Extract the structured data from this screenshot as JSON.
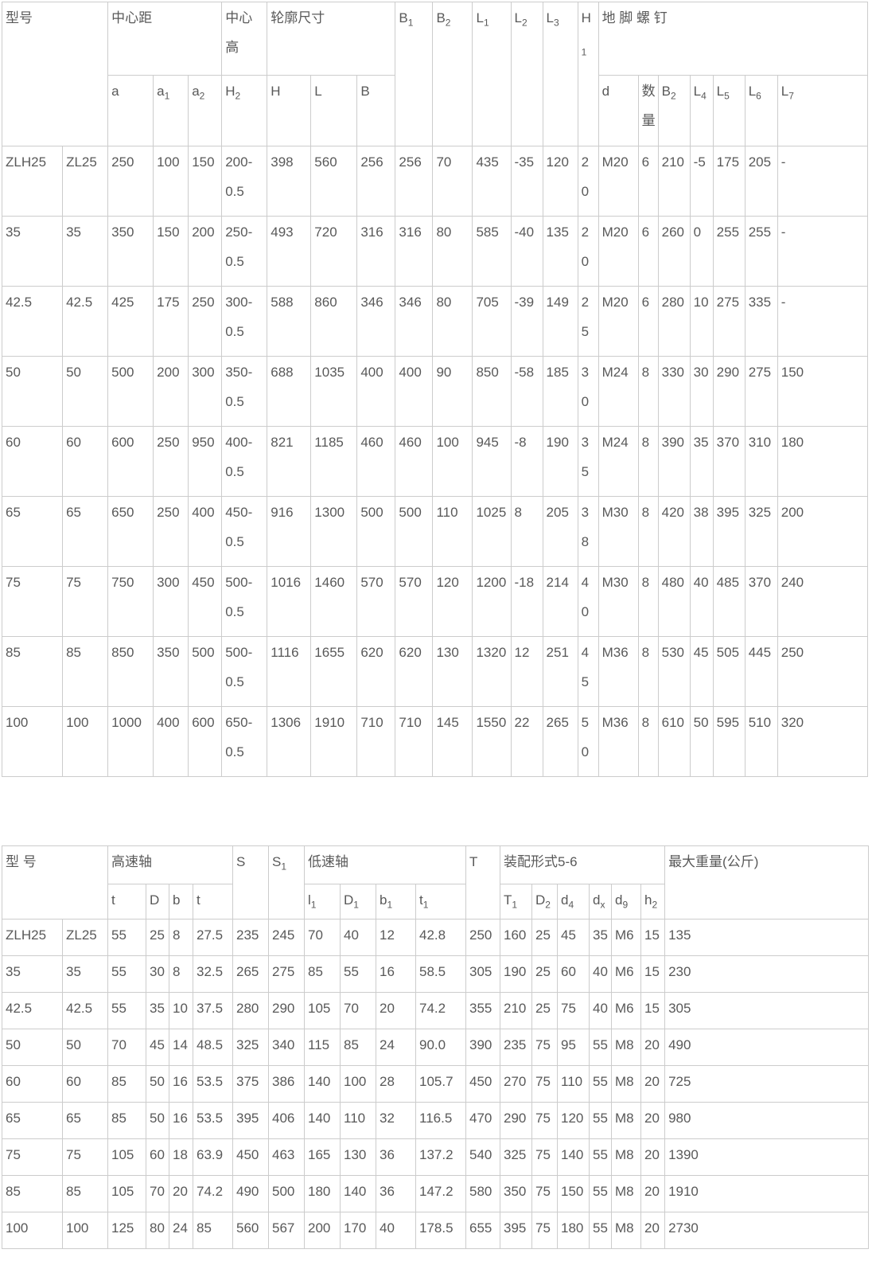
{
  "colors": {
    "text": "#595959",
    "border": "#cccccc",
    "background": "#ffffff"
  },
  "table1": {
    "group_headers": {
      "model": "型号",
      "center_distance": "中心距",
      "center_height": "中心高",
      "outline": "轮廓尺寸",
      "anchor_bolts": "地 脚  螺 钉"
    },
    "col_headers": {
      "B1": {
        "b": "B",
        "s": "1"
      },
      "B2": {
        "b": "B",
        "s": "2"
      },
      "L1": {
        "b": "L",
        "s": "1"
      },
      "L2": {
        "b": "L",
        "s": "2"
      },
      "L3": {
        "b": "L",
        "s": "3"
      },
      "H1": {
        "b": "H",
        "s": "1"
      },
      "a": {
        "b": "a",
        "s": ""
      },
      "a1": {
        "b": "a",
        "s": "1"
      },
      "a2": {
        "b": "a",
        "s": "2"
      },
      "H2": {
        "b": "H",
        "s": "2"
      },
      "H": {
        "b": "H",
        "s": ""
      },
      "L": {
        "b": "L",
        "s": ""
      },
      "B": {
        "b": "B",
        "s": ""
      },
      "d": {
        "b": "d",
        "s": ""
      },
      "qty": {
        "b": "数量",
        "s": ""
      },
      "B2b": {
        "b": "B",
        "s": "2"
      },
      "L4": {
        "b": "L",
        "s": "4"
      },
      "L5": {
        "b": "L",
        "s": "5"
      },
      "L6": {
        "b": "L",
        "s": "6"
      },
      "L7": {
        "b": "L",
        "s": "7"
      }
    },
    "rows": [
      [
        "ZLH25",
        "ZL25",
        "250",
        "100",
        "150",
        "200-0.5",
        "398",
        "560",
        "256",
        "256",
        "70",
        "435",
        "-35",
        "120",
        "20",
        "M20",
        "6",
        "210",
        "-5",
        "175",
        "205",
        "-"
      ],
      [
        "35",
        "35",
        "350",
        "150",
        "200",
        "250-0.5",
        "493",
        "720",
        "316",
        "316",
        "80",
        "585",
        "-40",
        "135",
        "20",
        "M20",
        "6",
        "260",
        "0",
        "255",
        "255",
        "-"
      ],
      [
        "42.5",
        "42.5",
        "425",
        "175",
        "250",
        "300-0.5",
        "588",
        "860",
        "346",
        "346",
        "80",
        "705",
        "-39",
        "149",
        "25",
        "M20",
        "6",
        "280",
        "10",
        "275",
        "335",
        "-"
      ],
      [
        "50",
        "50",
        "500",
        "200",
        "300",
        "350-0.5",
        "688",
        "1035",
        "400",
        "400",
        "90",
        "850",
        "-58",
        "185",
        "30",
        "M24",
        "8",
        "330",
        "30",
        "290",
        "275",
        "150"
      ],
      [
        "60",
        "60",
        "600",
        "250",
        "950",
        "400-0.5",
        "821",
        "1185",
        "460",
        "460",
        "100",
        "945",
        "-8",
        "190",
        "35",
        "M24",
        "8",
        "390",
        "35",
        "370",
        "310",
        "180"
      ],
      [
        "65",
        "65",
        "650",
        "250",
        "400",
        "450-0.5",
        "916",
        "1300",
        "500",
        "500",
        "110",
        "1025",
        "8",
        "205",
        "38",
        "M30",
        "8",
        "420",
        "38",
        "395",
        "325",
        "200"
      ],
      [
        "75",
        "75",
        "750",
        "300",
        "450",
        "500-0.5",
        "1016",
        "1460",
        "570",
        "570",
        "120",
        "1200",
        "-18",
        "214",
        "40",
        "M30",
        "8",
        "480",
        "40",
        "485",
        "370",
        "240"
      ],
      [
        "85",
        "85",
        "850",
        "350",
        "500",
        "500-0.5",
        "1116",
        "1655",
        "620",
        "620",
        "130",
        "1320",
        "12",
        "251",
        "45",
        "M36",
        "8",
        "530",
        "45",
        "505",
        "445",
        "250"
      ],
      [
        "100",
        "100",
        "1000",
        "400",
        "600",
        "650-0.5",
        "1306",
        "1910",
        "710",
        "710",
        "145",
        "1550",
        "22",
        "265",
        "50",
        "M36",
        "8",
        "610",
        "50",
        "595",
        "510",
        "320"
      ]
    ]
  },
  "table2": {
    "group_headers": {
      "model": "型 号",
      "high_speed_shaft": "高速轴",
      "low_speed_shaft": "低速轴",
      "assembly": "装配形式5-6",
      "max_weight": "最大重量(公斤)"
    },
    "col_headers": {
      "t_a": {
        "b": "t",
        "s": ""
      },
      "D": {
        "b": "D",
        "s": ""
      },
      "b": {
        "b": "b",
        "s": ""
      },
      "t_b": {
        "b": "t",
        "s": ""
      },
      "S": {
        "b": "S",
        "s": ""
      },
      "S1": {
        "b": "S",
        "s": "1"
      },
      "l1": {
        "b": "l",
        "s": "1"
      },
      "D1": {
        "b": "D",
        "s": "1"
      },
      "b1": {
        "b": "b",
        "s": "1"
      },
      "t1": {
        "b": "t",
        "s": "1"
      },
      "T": {
        "b": "T",
        "s": ""
      },
      "T1": {
        "b": "T",
        "s": "1"
      },
      "D2": {
        "b": "D",
        "s": "2"
      },
      "d4": {
        "b": "d",
        "s": "4"
      },
      "dx": {
        "b": "d",
        "s": "x"
      },
      "d9": {
        "b": "d",
        "s": "9"
      },
      "h2": {
        "b": "h",
        "s": "2"
      }
    },
    "rows": [
      [
        "ZLH25",
        "ZL25",
        "55",
        "25",
        "8",
        "27.5",
        "235",
        "245",
        "70",
        "40",
        "12",
        "42.8",
        "250",
        "160",
        "25",
        "45",
        "35",
        "M6",
        "15",
        "135"
      ],
      [
        "35",
        "35",
        "55",
        "30",
        "8",
        "32.5",
        "265",
        "275",
        "85",
        "55",
        "16",
        "58.5",
        "305",
        "190",
        "25",
        "60",
        "40",
        "M6",
        "15",
        "230"
      ],
      [
        "42.5",
        "42.5",
        "55",
        "35",
        "10",
        "37.5",
        "280",
        "290",
        "105",
        "70",
        "20",
        "74.2",
        "355",
        "210",
        "25",
        "75",
        "40",
        "M6",
        "15",
        "305"
      ],
      [
        "50",
        "50",
        "70",
        "45",
        "14",
        "48.5",
        "325",
        "340",
        "115",
        "85",
        "24",
        "90.0",
        "390",
        "235",
        "75",
        "95",
        "55",
        "M8",
        "20",
        "490"
      ],
      [
        "60",
        "60",
        "85",
        "50",
        "16",
        "53.5",
        "375",
        "386",
        "140",
        "100",
        "28",
        "105.7",
        "450",
        "270",
        "75",
        "110",
        "55",
        "M8",
        "20",
        "725"
      ],
      [
        "65",
        "65",
        "85",
        "50",
        "16",
        "53.5",
        "395",
        "406",
        "140",
        "110",
        "32",
        "116.5",
        "470",
        "290",
        "75",
        "120",
        "55",
        "M8",
        "20",
        "980"
      ],
      [
        "75",
        "75",
        "105",
        "60",
        "18",
        "63.9",
        "450",
        "463",
        "165",
        "130",
        "36",
        "137.2",
        "540",
        "325",
        "75",
        "140",
        "55",
        "M8",
        "20",
        "1390"
      ],
      [
        "85",
        "85",
        "105",
        "70",
        "20",
        "74.2",
        "490",
        "500",
        "180",
        "140",
        "36",
        "147.2",
        "580",
        "350",
        "75",
        "150",
        "55",
        "M8",
        "20",
        "1910"
      ],
      [
        "100",
        "100",
        "125",
        "80",
        "24",
        "85",
        "560",
        "567",
        "200",
        "170",
        "40",
        "178.5",
        "655",
        "395",
        "75",
        "180",
        "55",
        "M8",
        "20",
        "2730"
      ]
    ]
  }
}
